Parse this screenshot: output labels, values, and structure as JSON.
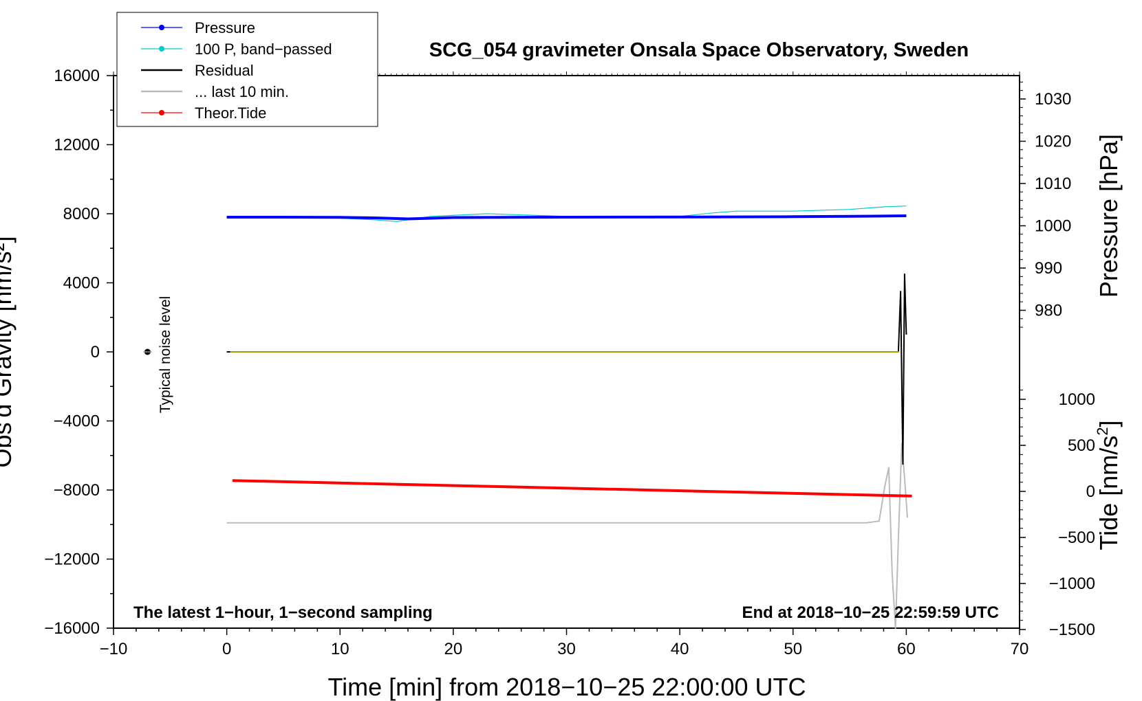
{
  "chart_data": {
    "type": "line",
    "title": "SCG_054 gravimeter Onsala Space Observatory, Sweden",
    "xlabel": "Time [min] from 2018−10−25 22:00:00 UTC",
    "ylabel_left": "Obs'd Gravity [nm/s²]",
    "ylabel_right_pressure": "Pressure [hPa]",
    "ylabel_right_tide_main": "Tide [nm/s",
    "ylabel_right_tide_sup": "2",
    "ylabel_right_tide_end": "]",
    "xlim": [
      -10,
      70
    ],
    "ylim_left": [
      -16000,
      16000
    ],
    "x_ticks": [
      "−10",
      "0",
      "10",
      "20",
      "30",
      "40",
      "50",
      "60",
      "70"
    ],
    "y_ticks_left": [
      "16000",
      "12000",
      "8000",
      "4000",
      "0",
      "−4000",
      "−8000",
      "−12000",
      "−16000"
    ],
    "y_ticks_pressure": [
      "1030",
      "1020",
      "1010",
      "1000",
      "990",
      "980"
    ],
    "y_ticks_tide": [
      "1000",
      "500",
      "0",
      "−500",
      "−1000",
      "−1500"
    ],
    "grid": false,
    "legend": {
      "placement": "top-left",
      "entries": [
        {
          "label": "Pressure",
          "color": "#0000ff"
        },
        {
          "label": "100 P, band−passed",
          "color": "#00cccc"
        },
        {
          "label": "Residual",
          "color": "#000000"
        },
        {
          "label": "... last 10 min.",
          "color": "#bbbbbb"
        },
        {
          "label": "Theor.Tide",
          "color": "#ff0000"
        }
      ]
    },
    "annotations": {
      "bottom_left": "The latest 1−hour, 1−second sampling",
      "bottom_right": "End at 2018−10−25 22:59:59 UTC",
      "noise_label": "Typical noise level"
    },
    "series": [
      {
        "name": "Pressure",
        "color": "#0000ff",
        "axis": "left",
        "x": [
          0,
          5,
          10,
          13,
          16,
          20,
          30,
          40,
          50,
          55,
          60
        ],
        "y": [
          7800,
          7800,
          7790,
          7760,
          7700,
          7780,
          7800,
          7810,
          7830,
          7850,
          7880
        ]
      },
      {
        "name": "100 P, band−passed",
        "color": "#00cccc",
        "axis": "left",
        "x": [
          0,
          8,
          13,
          15,
          18,
          23,
          30,
          40,
          43,
          45,
          50,
          55,
          58,
          60
        ],
        "y": [
          7850,
          7800,
          7650,
          7550,
          7850,
          8000,
          7850,
          7850,
          8050,
          8150,
          8150,
          8250,
          8400,
          8450
        ]
      },
      {
        "name": "Residual",
        "color": "#000000",
        "axis": "left",
        "x": [
          0,
          10,
          20,
          30,
          40,
          50,
          57,
          59.3,
          59.5,
          59.7,
          59.85,
          60
        ],
        "y": [
          0,
          0,
          0,
          0,
          0,
          0,
          0,
          0,
          3500,
          -6500,
          4500,
          1000
        ]
      },
      {
        "name": "... last 10 min.",
        "color": "#bbbbbb",
        "axis": "left",
        "x": [
          0,
          10,
          20,
          30,
          40,
          50,
          56.5,
          57.6,
          58.1,
          58.45,
          58.75,
          59.05,
          59.3,
          59.6,
          59.85,
          60.1
        ],
        "y": [
          -9900,
          -9900,
          -9900,
          -9900,
          -9900,
          -9900,
          -9900,
          -9800,
          -7800,
          -6700,
          -12800,
          -16000,
          -10800,
          -5300,
          -7300,
          -9600
        ]
      },
      {
        "name": "Theor.Tide",
        "color": "#ff0000",
        "axis": "left",
        "x": [
          0.5,
          60.5
        ],
        "y": [
          -7450,
          -8350
        ]
      },
      {
        "name": "Typical noise level",
        "color": "#000000",
        "axis": "left",
        "x": [
          -7
        ],
        "y": [
          0
        ]
      }
    ]
  }
}
